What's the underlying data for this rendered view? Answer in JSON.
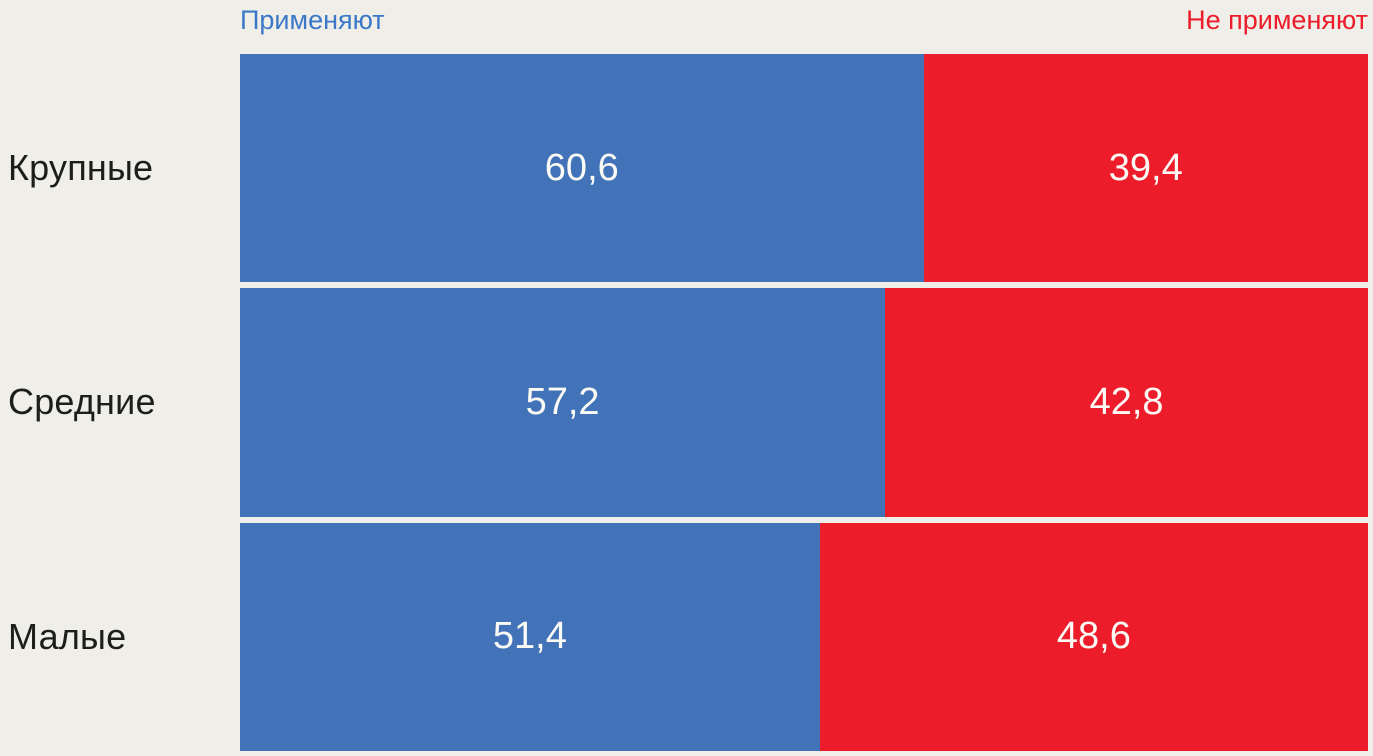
{
  "chart_data": {
    "type": "bar",
    "subtype": "horizontal-stacked-100-percent",
    "categories": [
      "Крупные",
      "Средние",
      "Малые"
    ],
    "series": [
      {
        "name": "Применяют",
        "color": "#4273b8",
        "values": [
          60.6,
          57.2,
          51.4
        ]
      },
      {
        "name": "Не применяют",
        "color": "#ed1c2b",
        "values": [
          39.4,
          42.8,
          48.6
        ]
      }
    ],
    "value_labels": [
      [
        "60,6",
        "39,4"
      ],
      [
        "57,2",
        "42,8"
      ],
      [
        "51,4",
        "48,6"
      ]
    ],
    "xlim": [
      0,
      100
    ],
    "legend_position": "top",
    "grid": false,
    "background_color": "#efeee8",
    "label_text_color": "#1d1d1b",
    "value_text_color": "#ffffff"
  },
  "legend": {
    "apply_label": "Применяют",
    "not_apply_label": "Не применяют"
  }
}
